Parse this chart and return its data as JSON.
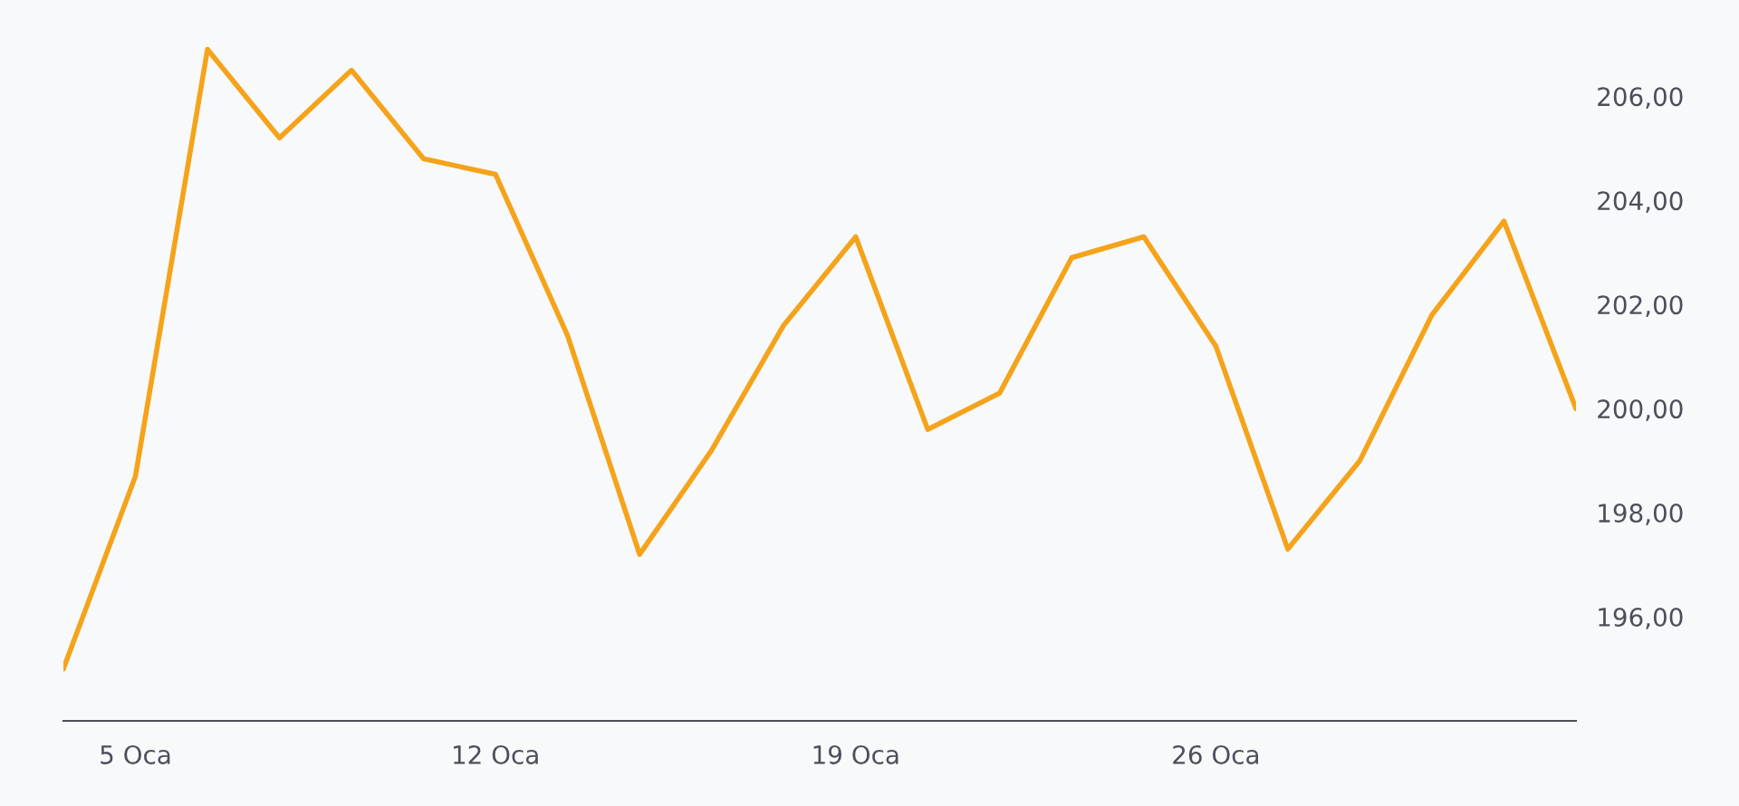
{
  "chart_data": {
    "type": "line",
    "categories": [
      null,
      "5 Oca",
      null,
      null,
      null,
      null,
      "12 Oca",
      null,
      null,
      null,
      null,
      "19 Oca",
      null,
      null,
      null,
      null,
      "26 Oca",
      null,
      null,
      null,
      null,
      null
    ],
    "series": [
      {
        "color": "#f5a31a",
        "values": [
          195.0,
          198.7,
          206.9,
          205.2,
          206.5,
          204.8,
          204.5,
          201.4,
          197.2,
          199.2,
          201.6,
          203.3,
          199.6,
          200.3,
          202.9,
          203.3,
          201.2,
          197.3,
          199.0,
          201.8,
          203.6,
          200.0
        ]
      }
    ],
    "ylim": [
      194,
      207.85
    ],
    "yticks": [
      {
        "value": 196,
        "label": "196,00"
      },
      {
        "value": 198,
        "label": "198,00"
      },
      {
        "value": 200,
        "label": "200,00"
      },
      {
        "value": 202,
        "label": "202,00"
      },
      {
        "value": 204,
        "label": "204,00"
      },
      {
        "value": 206,
        "label": "206,00"
      }
    ],
    "grid": false,
    "legend": false,
    "marker": "none",
    "line_style": "solid"
  }
}
